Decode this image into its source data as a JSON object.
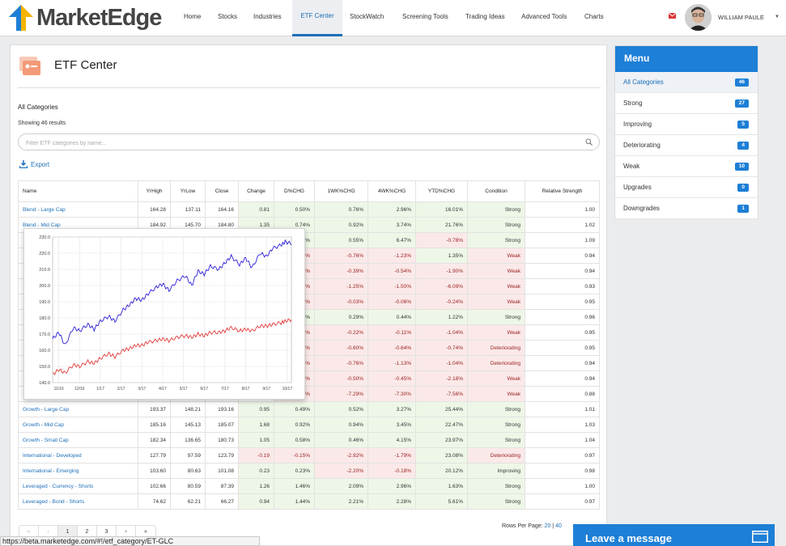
{
  "app": {
    "logo_text": "MarketEdge"
  },
  "nav": {
    "items": [
      "Home",
      "Stocks",
      "Industries",
      "ETF Center",
      "StockWatch",
      "Screening Tools",
      "Trading Ideas",
      "Advanced Tools",
      "Charts"
    ],
    "active": "ETF Center",
    "user": "WILLIAM PAULE"
  },
  "page": {
    "title": "ETF Center",
    "heading": "All Categories",
    "results": "Showing 46 results",
    "filter_placeholder": "Filter ETF categories by name...",
    "export_label": "Export"
  },
  "table": {
    "headers": [
      "Name",
      "YrHigh",
      "YrLow",
      "Close",
      "Change",
      "D%CHG",
      "1WK%CHG",
      "4WK%CHG",
      "YTD%CHG",
      "Condition",
      "Relative Strength"
    ],
    "rows": [
      [
        "Blend - Large Cap",
        "164.28",
        "137.11",
        "164.16",
        "0.81",
        "0.50%",
        "0.76%",
        "2.96%",
        "16.01%",
        "Strong",
        "1.00"
      ],
      [
        "Blend - Mid Cap",
        "184.92",
        "145.70",
        "184.80",
        "1.35",
        "0.74%",
        "0.92%",
        "3.74%",
        "21.76%",
        "Strong",
        "1.02"
      ],
      [
        "",
        "",
        "",
        "",
        "",
        "0.13%",
        "0.55%",
        "6.47%",
        "-0.78%",
        "Strong",
        "1.09"
      ],
      [
        "",
        "",
        "",
        "",
        "",
        "-0.09%",
        "-0.76%",
        "-1.23%",
        "1.35%",
        "Weak",
        "0.94"
      ],
      [
        "",
        "",
        "",
        "",
        "",
        "-0.30%",
        "-0.39%",
        "-0.54%",
        "-1.90%",
        "Weak",
        "0.94"
      ],
      [
        "",
        "",
        "",
        "",
        "",
        "-0.45%",
        "-1.25%",
        "-1.50%",
        "-6.09%",
        "Weak",
        "0.93"
      ],
      [
        "",
        "",
        "",
        "",
        "",
        "-0.15%",
        "-0.03%",
        "-0.06%",
        "-0.24%",
        "Weak",
        "0.95"
      ],
      [
        "",
        "",
        "",
        "",
        "",
        "0.23%",
        "0.29%",
        "0.44%",
        "1.22%",
        "Strong",
        "0.96"
      ],
      [
        "",
        "",
        "",
        "",
        "",
        "-0.17%",
        "-0.22%",
        "-0.11%",
        "-1.04%",
        "Weak",
        "0.95"
      ],
      [
        "",
        "",
        "",
        "",
        "",
        "-0.22%",
        "-0.60%",
        "-0.64%",
        "-0.74%",
        "Deteriorating",
        "0.95"
      ],
      [
        "",
        "",
        "",
        "",
        "",
        "-0.22%",
        "-0.76%",
        "-1.13%",
        "-1.04%",
        "Deteriorating",
        "0.94"
      ],
      [
        "",
        "",
        "",
        "",
        "",
        "-0.31%",
        "-0.50%",
        "-0.45%",
        "-2.18%",
        "Weak",
        "0.94"
      ],
      [
        "",
        "",
        "",
        "",
        "",
        "-0.63%",
        "-7.29%",
        "-7.30%",
        "-7.56%",
        "Weak",
        "0.88"
      ],
      [
        "Growth - Large Cap",
        "193.37",
        "148.21",
        "193.16",
        "0.95",
        "0.49%",
        "0.52%",
        "3.27%",
        "25.44%",
        "Strong",
        "1.01"
      ],
      [
        "Growth - Mid Cap",
        "185.16",
        "145.13",
        "185.07",
        "1.68",
        "0.92%",
        "0.94%",
        "3.45%",
        "22.47%",
        "Strong",
        "1.03"
      ],
      [
        "Growth - Small Cap",
        "182.34",
        "136.65",
        "180.73",
        "1.05",
        "0.58%",
        "0.46%",
        "4.15%",
        "23.97%",
        "Strong",
        "1.04"
      ],
      [
        "International - Developed",
        "127.79",
        "97.59",
        "123.79",
        "-0.19",
        "-0.15%",
        "-2.92%",
        "-1.79%",
        "23.08%",
        "Deteriorating",
        "0.97"
      ],
      [
        "International - Emerging",
        "103.60",
        "80.63",
        "101.08",
        "0.23",
        "0.23%",
        "-2.20%",
        "-0.18%",
        "20.12%",
        "Improving",
        "0.98"
      ],
      [
        "Leveraged - Currency - Shorts",
        "102.66",
        "80.59",
        "87.39",
        "1.26",
        "1.46%",
        "2.09%",
        "2.96%",
        "1.63%",
        "Strong",
        "1.00"
      ],
      [
        "Leveraged - Bond - Shorts",
        "74.62",
        "62.21",
        "66.27",
        "0.94",
        "1.44%",
        "2.21%",
        "2.28%",
        "5.61%",
        "Strong",
        "0.97"
      ]
    ]
  },
  "pagination": {
    "prev2": "«",
    "prev": "‹",
    "pages": [
      "1",
      "2",
      "3"
    ],
    "next": "›",
    "next2": "»",
    "rows_label": "Rows Per Page:",
    "rows_20": "20",
    "rows_40": "40"
  },
  "menu": {
    "title": "Menu",
    "items": [
      {
        "label": "All Categories",
        "count": "46"
      },
      {
        "label": "Strong",
        "count": "27"
      },
      {
        "label": "Improving",
        "count": "5"
      },
      {
        "label": "Deteriorating",
        "count": "4"
      },
      {
        "label": "Weak",
        "count": "10"
      },
      {
        "label": "Upgrades",
        "count": "0"
      },
      {
        "label": "Downgrades",
        "count": "1"
      }
    ]
  },
  "chat": {
    "label": "Leave a message"
  },
  "statusbar": {
    "url": "https://beta.marketedge.com/#!/etf_category/ET-GLC"
  },
  "colors": {
    "accent": "#1d7fd6",
    "link": "#1d6fb8",
    "series1": "#2b1fd8",
    "series2": "#e23b3b"
  },
  "chart_data": {
    "type": "line",
    "ylim": [
      140,
      230
    ],
    "yticks": [
      "140.0",
      "150.0",
      "160.0",
      "170.0",
      "180.0",
      "190.0",
      "200.0",
      "210.0",
      "220.0",
      "230.0"
    ],
    "xticks": [
      "11/16",
      "12/16",
      "1/17",
      "2/17",
      "3/17",
      "4/17",
      "5/17",
      "6/17",
      "7/17",
      "8/17",
      "9/17",
      "10/17"
    ],
    "series": [
      {
        "color": "#2b1fd8",
        "x": [
          0,
          0.3,
          0.6,
          1,
          1.3,
          1.7,
          2,
          2.3,
          2.7,
          3,
          3.4,
          3.7,
          4,
          4.3,
          4.6,
          5,
          5.3,
          5.6,
          6,
          6.4,
          6.7,
          7,
          7.3,
          7.6,
          8,
          8.3,
          8.6,
          9,
          9.3,
          9.6,
          10,
          10.3,
          10.6,
          11,
          11.2,
          11.5
        ],
        "values": [
          167,
          171,
          163,
          174,
          172,
          176,
          173,
          178,
          181,
          178,
          185,
          188,
          192,
          191,
          195,
          199,
          201,
          197,
          203,
          206,
          200,
          209,
          207,
          212,
          210,
          214,
          218,
          213,
          217,
          211,
          220,
          218,
          223,
          225,
          227,
          226
        ]
      },
      {
        "color": "#e23b3b",
        "x": [
          0,
          0.3,
          0.6,
          1,
          1.3,
          1.7,
          2,
          2.3,
          2.7,
          3,
          3.4,
          3.7,
          4,
          4.3,
          4.6,
          5,
          5.3,
          5.6,
          6,
          6.4,
          6.7,
          7,
          7.3,
          7.6,
          8,
          8.3,
          8.6,
          9,
          9.3,
          9.6,
          10,
          10.3,
          10.6,
          11,
          11.2,
          11.5
        ],
        "values": [
          145,
          148,
          146,
          151,
          150,
          153,
          152,
          155,
          158,
          156,
          160,
          161,
          163,
          163,
          165,
          166,
          167,
          166,
          168,
          169,
          168,
          170,
          169,
          171,
          171,
          172,
          174,
          172,
          173,
          172,
          175,
          175,
          176,
          177,
          178,
          179
        ]
      }
    ]
  }
}
